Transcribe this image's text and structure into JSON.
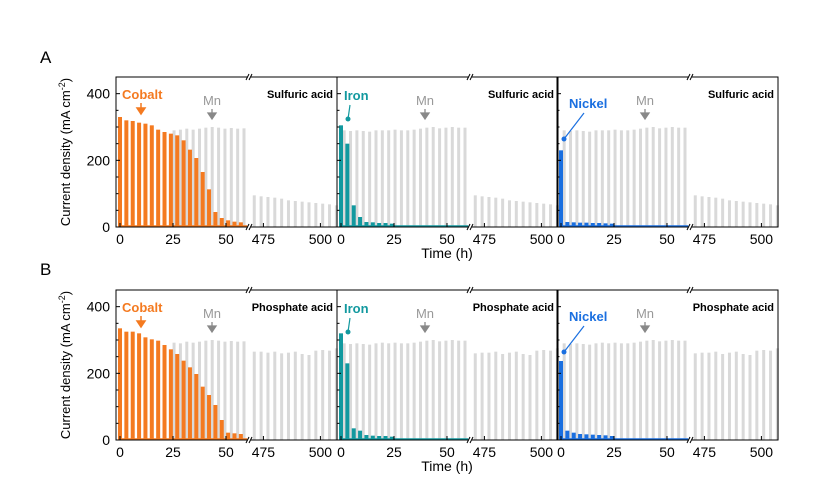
{
  "colors": {
    "Cobalt": "#f47a20",
    "Iron": "#12999f",
    "Nickel": "#1a6fe0",
    "Mn": "#d9d9d9",
    "Mn_label": "#999999"
  },
  "chart_data": [
    {
      "row_label": "A",
      "type": "bar",
      "ylabel": "Current density (mA cm-2)",
      "xlabel": "Time (h)",
      "ylim": [
        0,
        450
      ],
      "yticks": [
        0,
        200,
        400
      ],
      "xticks_left": [
        0,
        25,
        50
      ],
      "xticks_right": [
        475,
        500
      ],
      "x_break": [
        61,
        470
      ],
      "panels": [
        {
          "metal": "Cobalt",
          "electrolyte": "Sulfuric acid",
          "mn_label": "Mn",
          "metal_series": {
            "x": [
              0,
              3,
              6,
              9,
              12,
              15,
              18,
              21,
              24,
              27,
              30,
              33,
              36,
              39,
              42,
              45,
              48,
              51,
              54,
              57
            ],
            "values": [
              330,
              320,
              318,
              313,
              310,
              305,
              292,
              285,
              280,
              275,
              260,
              232,
              207,
              165,
              113,
              45,
              27,
              20,
              16,
              14
            ]
          },
          "mn_series": {
            "x": [
              1.5,
              4.5,
              7.5,
              10.5,
              13.5,
              16.5,
              19.5,
              22.5,
              25.5,
              28.5,
              31.5,
              34.5,
              37.5,
              40.5,
              43.5,
              46.5,
              49.5,
              52.5,
              55.5,
              58.5,
              471,
              474,
              477,
              480,
              483,
              486,
              489,
              492,
              495,
              498,
              501,
              504,
              507
            ],
            "values": [
              0,
              0,
              0,
              0,
              0,
              0,
              0,
              0,
              290,
              292,
              295,
              292,
              295,
              298,
              300,
              298,
              295,
              297,
              295,
              296,
              95,
              92,
              90,
              88,
              85,
              80,
              78,
              76,
              74,
              72,
              70,
              68,
              65
            ]
          }
        },
        {
          "metal": "Iron",
          "electrolyte": "Sulfuric acid",
          "mn_label": "Mn",
          "metal_series": {
            "x": [
              0,
              3,
              6,
              9,
              12,
              15,
              18,
              21,
              24
            ],
            "values": [
              305,
              250,
              65,
              30,
              15,
              14,
              12,
              12,
              10
            ]
          },
          "mn_series": {
            "x": [
              1.5,
              4.5,
              7.5,
              10.5,
              13.5,
              16.5,
              19.5,
              22.5,
              25.5,
              28.5,
              31.5,
              34.5,
              37.5,
              40.5,
              43.5,
              46.5,
              49.5,
              52.5,
              55.5,
              58.5,
              471,
              474,
              477,
              480,
              483,
              486,
              489,
              492,
              495,
              498,
              501,
              504,
              507
            ],
            "values": [
              290,
              288,
              290,
              288,
              286,
              290,
              290,
              290,
              292,
              290,
              290,
              292,
              295,
              298,
              300,
              296,
              298,
              300,
              298,
              298,
              95,
              92,
              90,
              88,
              85,
              80,
              78,
              76,
              74,
              72,
              70,
              68,
              65
            ]
          }
        },
        {
          "metal": "Nickel",
          "electrolyte": "Sulfuric acid",
          "mn_label": "Mn",
          "metal_series": {
            "x": [
              0,
              3,
              6,
              9,
              12,
              15,
              18,
              21,
              24
            ],
            "values": [
              230,
              15,
              14,
              13,
              13,
              12,
              12,
              11,
              10
            ]
          },
          "mn_series": {
            "x": [
              1.5,
              4.5,
              7.5,
              10.5,
              13.5,
              16.5,
              19.5,
              22.5,
              25.5,
              28.5,
              31.5,
              34.5,
              37.5,
              40.5,
              43.5,
              46.5,
              49.5,
              52.5,
              55.5,
              58.5,
              471,
              474,
              477,
              480,
              483,
              486,
              489,
              492,
              495,
              498,
              501,
              504,
              507
            ],
            "values": [
              290,
              288,
              290,
              288,
              286,
              290,
              290,
              290,
              292,
              290,
              290,
              292,
              295,
              298,
              300,
              296,
              298,
              300,
              298,
              298,
              95,
              92,
              90,
              88,
              85,
              80,
              78,
              76,
              74,
              72,
              70,
              68,
              65
            ]
          }
        }
      ]
    },
    {
      "row_label": "B",
      "type": "bar",
      "ylabel": "Current density (mA cm-2)",
      "xlabel": "Time (h)",
      "ylim": [
        0,
        450
      ],
      "yticks": [
        0,
        200,
        400
      ],
      "xticks_left": [
        0,
        25,
        50
      ],
      "xticks_right": [
        475,
        500
      ],
      "x_break": [
        61,
        470
      ],
      "panels": [
        {
          "metal": "Cobalt",
          "electrolyte": "Phosphate acid",
          "mn_label": "Mn",
          "metal_series": {
            "x": [
              0,
              3,
              6,
              9,
              12,
              15,
              18,
              21,
              24,
              27,
              30,
              33,
              36,
              39,
              42,
              45,
              48,
              51,
              54,
              57
            ],
            "values": [
              335,
              325,
              325,
              320,
              308,
              302,
              298,
              285,
              272,
              258,
              238,
              218,
              198,
              160,
              135,
              105,
              60,
              22,
              20,
              18
            ]
          },
          "mn_series": {
            "x": [
              1.5,
              4.5,
              7.5,
              10.5,
              13.5,
              16.5,
              19.5,
              22.5,
              25.5,
              28.5,
              31.5,
              34.5,
              37.5,
              40.5,
              43.5,
              46.5,
              49.5,
              52.5,
              55.5,
              58.5,
              471,
              474,
              477,
              480,
              483,
              486,
              489,
              492,
              495,
              498,
              501,
              504,
              507
            ],
            "values": [
              0,
              0,
              0,
              0,
              0,
              0,
              0,
              0,
              292,
              290,
              295,
              292,
              295,
              298,
              300,
              298,
              295,
              297,
              295,
              296,
              265,
              265,
              262,
              265,
              260,
              262,
              265,
              258,
              255,
              268,
              270,
              268,
              275
            ]
          }
        },
        {
          "metal": "Iron",
          "electrolyte": "Phosphate acid",
          "mn_label": "Mn",
          "metal_series": {
            "x": [
              0,
              3,
              6,
              9,
              12,
              15,
              18,
              21,
              24
            ],
            "values": [
              320,
              230,
              35,
              28,
              15,
              13,
              12,
              12,
              10
            ]
          },
          "mn_series": {
            "x": [
              1.5,
              4.5,
              7.5,
              10.5,
              13.5,
              16.5,
              19.5,
              22.5,
              25.5,
              28.5,
              31.5,
              34.5,
              37.5,
              40.5,
              43.5,
              46.5,
              49.5,
              52.5,
              55.5,
              58.5,
              471,
              474,
              477,
              480,
              483,
              486,
              489,
              492,
              495,
              498,
              501,
              504,
              507
            ],
            "values": [
              290,
              288,
              290,
              288,
              286,
              290,
              292,
              290,
              292,
              290,
              290,
              292,
              295,
              298,
              300,
              296,
              298,
              300,
              298,
              298,
              260,
              262,
              262,
              265,
              258,
              262,
              265,
              258,
              255,
              268,
              270,
              268,
              275
            ]
          }
        },
        {
          "metal": "Nickel",
          "electrolyte": "Phosphate acid",
          "mn_label": "Mn",
          "metal_series": {
            "x": [
              0,
              3,
              6,
              9,
              12,
              15,
              18,
              21,
              24
            ],
            "values": [
              237,
              28,
              22,
              18,
              17,
              16,
              15,
              14,
              12
            ]
          },
          "mn_series": {
            "x": [
              1.5,
              4.5,
              7.5,
              10.5,
              13.5,
              16.5,
              19.5,
              22.5,
              25.5,
              28.5,
              31.5,
              34.5,
              37.5,
              40.5,
              43.5,
              46.5,
              49.5,
              52.5,
              55.5,
              58.5,
              471,
              474,
              477,
              480,
              483,
              486,
              489,
              492,
              495,
              498,
              501,
              504,
              507
            ],
            "values": [
              290,
              288,
              290,
              288,
              286,
              290,
              292,
              290,
              292,
              290,
              290,
              292,
              295,
              298,
              300,
              296,
              298,
              300,
              298,
              298,
              260,
              262,
              262,
              265,
              258,
              262,
              265,
              258,
              255,
              268,
              270,
              268,
              275
            ]
          }
        }
      ]
    }
  ]
}
